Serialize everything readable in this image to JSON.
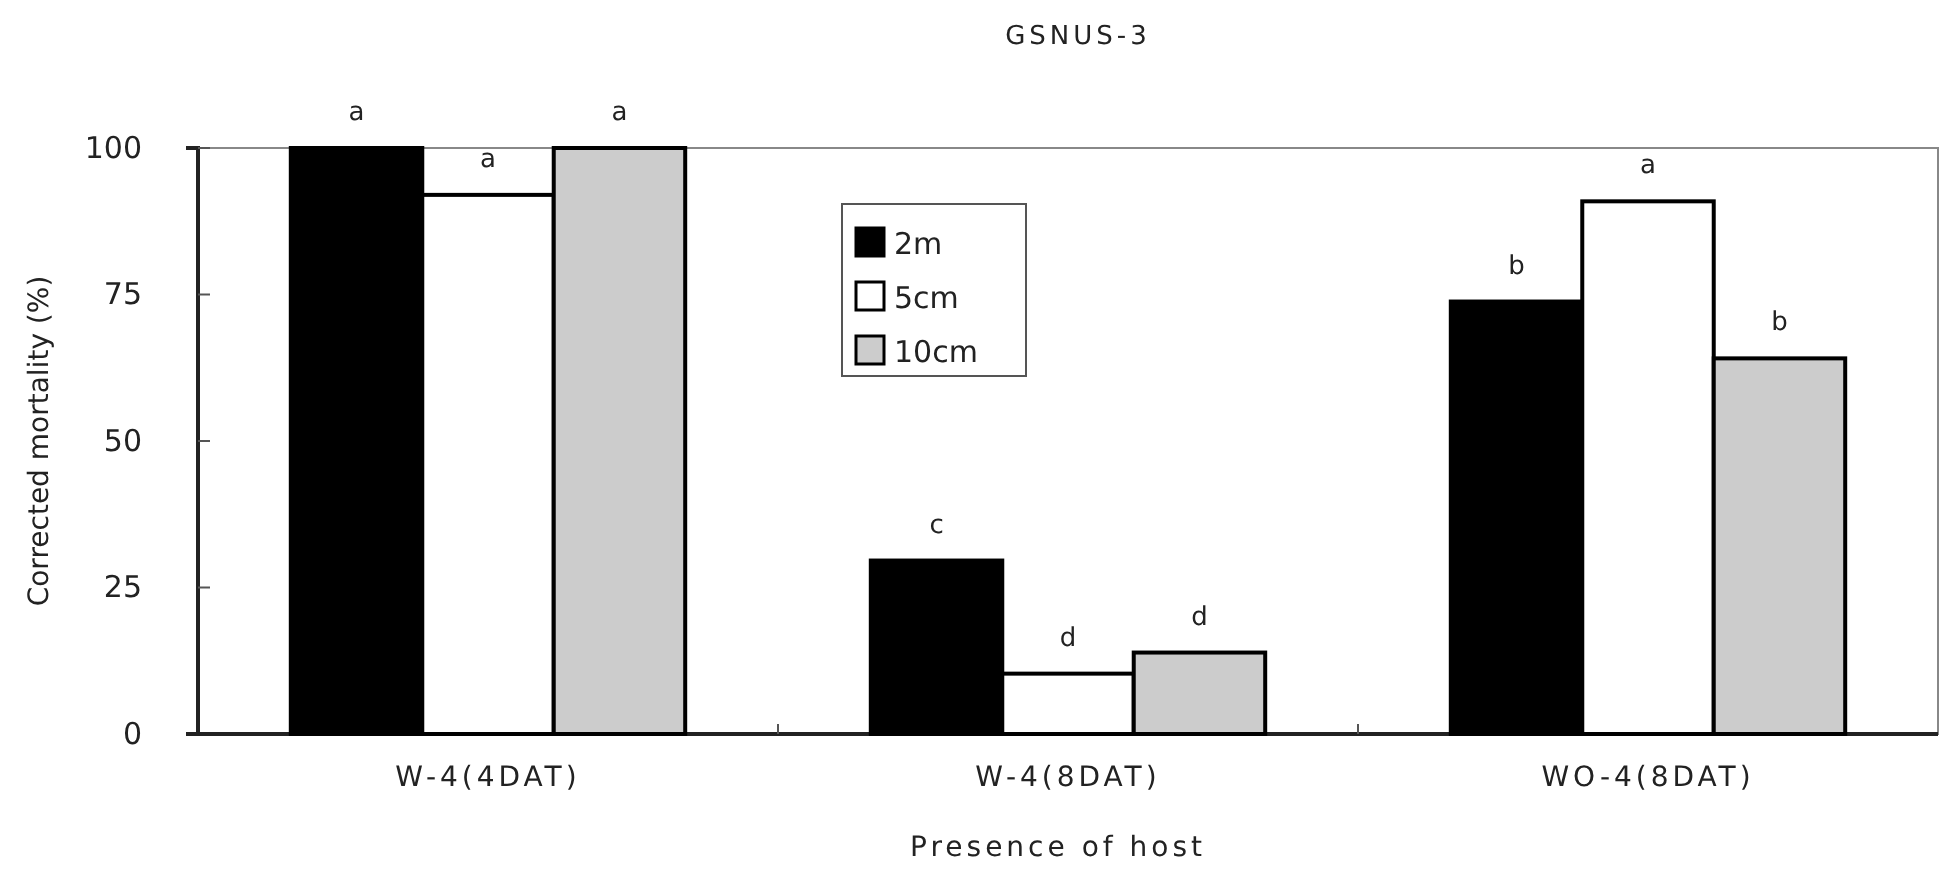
{
  "chart_data": {
    "type": "bar",
    "title": "GSNUS-3",
    "xlabel": "Presence of host",
    "ylabel": "Corrected mortality (%)",
    "categories": [
      "W-4(4DAT)",
      "W-4(8DAT)",
      "WO-4(8DAT)"
    ],
    "series": [
      {
        "name": "2m",
        "color": "#000000",
        "values": [
          100,
          29.6,
          73.8
        ],
        "value_labels": [
          "a",
          "c",
          "b"
        ]
      },
      {
        "name": "5cm",
        "color": "#ffffff",
        "values": [
          92,
          10.3,
          90.9
        ],
        "value_labels": [
          "a",
          "d",
          "a"
        ]
      },
      {
        "name": "10cm",
        "color": "#cccccc",
        "values": [
          100,
          13.9,
          64.1
        ],
        "value_labels": [
          "a",
          "d",
          "b"
        ]
      }
    ],
    "ylim": [
      0,
      100
    ],
    "yticks": [
      0,
      25,
      50,
      75,
      100
    ],
    "legend": "top center"
  }
}
